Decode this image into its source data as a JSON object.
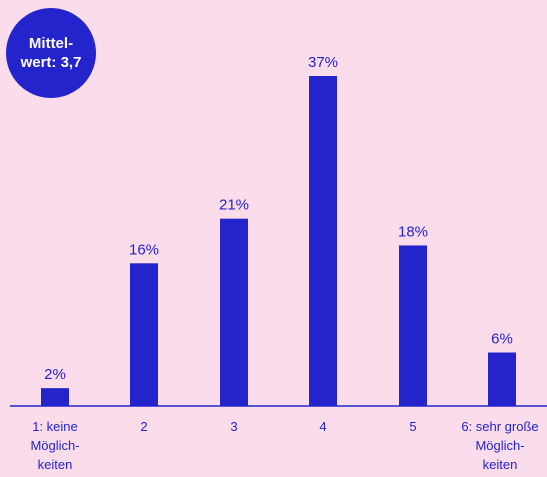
{
  "badge": {
    "line1": "Mittel-",
    "line2": "wert: 3,7"
  },
  "colors": {
    "background": "#fbdcea",
    "bar": "#2424cc",
    "text": "#2424cc",
    "axis": "#2424cc"
  },
  "chart_data": {
    "type": "bar",
    "categories": [
      [
        "1: keine",
        "Möglich-",
        "keiten"
      ],
      [
        "2"
      ],
      [
        "3"
      ],
      [
        "4"
      ],
      [
        "5"
      ],
      [
        "6: sehr große",
        "Möglich-",
        "keiten"
      ]
    ],
    "values": [
      2,
      16,
      21,
      37,
      18,
      6
    ],
    "value_labels": [
      "2%",
      "16%",
      "21%",
      "37%",
      "18%",
      "6%"
    ],
    "ylim": [
      0,
      37
    ],
    "grid": false,
    "legend": "none"
  }
}
